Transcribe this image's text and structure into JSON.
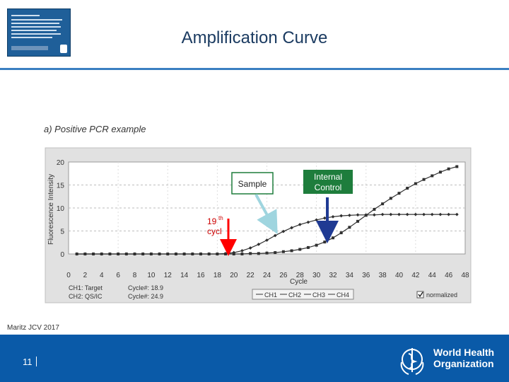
{
  "slide": {
    "title": "Amplification Curve",
    "subtitle": "a) Positive PCR example",
    "citation": "Maritz JCV 2017",
    "page_number": "11",
    "logo_text_line1": "World Health",
    "logo_text_line2": "Organization"
  },
  "chart_data": {
    "type": "line",
    "xlabel": "Cycle",
    "ylabel": "Fluorescence Intensity",
    "xlim": [
      0,
      48
    ],
    "ylim": [
      0,
      20
    ],
    "x_ticks": [
      0,
      2,
      4,
      6,
      8,
      10,
      12,
      14,
      16,
      18,
      20,
      22,
      24,
      26,
      28,
      30,
      32,
      34,
      36,
      38,
      40,
      42,
      44,
      46,
      48
    ],
    "y_ticks": [
      0,
      5,
      10,
      15,
      20
    ],
    "grid": true,
    "series": [
      {
        "name": "CH1",
        "x": [
          1,
          2,
          3,
          4,
          5,
          6,
          7,
          8,
          9,
          10,
          11,
          12,
          13,
          14,
          15,
          16,
          17,
          18,
          19,
          20,
          21,
          22,
          23,
          24,
          25,
          26,
          27,
          28,
          29,
          30,
          31,
          32,
          33,
          34,
          35,
          36,
          37,
          38,
          39,
          40,
          41,
          42,
          43,
          44,
          45,
          46,
          47
        ],
        "values": [
          0,
          0,
          0,
          0,
          0,
          0,
          0,
          0,
          0,
          0,
          0,
          0,
          0,
          0,
          0,
          0,
          0,
          0,
          0.1,
          0.3,
          0.7,
          1.3,
          2.1,
          3.0,
          4.0,
          4.9,
          5.7,
          6.4,
          6.9,
          7.4,
          7.8,
          8.1,
          8.3,
          8.4,
          8.5,
          8.5,
          8.5,
          8.6,
          8.6,
          8.6,
          8.6,
          8.6,
          8.6,
          8.6,
          8.6,
          8.6,
          8.6
        ]
      },
      {
        "name": "CH2",
        "x": [
          1,
          2,
          3,
          4,
          5,
          6,
          7,
          8,
          9,
          10,
          11,
          12,
          13,
          14,
          15,
          16,
          17,
          18,
          19,
          20,
          21,
          22,
          23,
          24,
          25,
          26,
          27,
          28,
          29,
          30,
          31,
          32,
          33,
          34,
          35,
          36,
          37,
          38,
          39,
          40,
          41,
          42,
          43,
          44,
          45,
          46,
          47
        ],
        "values": [
          0,
          0,
          0,
          0,
          0,
          0,
          0,
          0,
          0,
          0,
          0,
          0,
          0,
          0,
          0,
          0,
          0,
          0,
          0,
          0,
          0,
          0.1,
          0.1,
          0.2,
          0.3,
          0.5,
          0.7,
          1.0,
          1.4,
          1.9,
          2.6,
          3.5,
          4.6,
          5.8,
          7.1,
          8.4,
          9.7,
          10.9,
          12.1,
          13.2,
          14.3,
          15.3,
          16.2,
          17.0,
          17.8,
          18.5,
          19.0
        ]
      }
    ],
    "legend": {
      "position": "bottom-center",
      "entries": [
        "CH1",
        "CH2",
        "CH3",
        "CH4"
      ]
    },
    "info": {
      "line1_label": "CH1: Target",
      "line1_value": "Cycle#: 18.9",
      "line2_label": "CH2: QS/IC",
      "line2_value": "Cycle#: 24.9",
      "normalized_label": "normalized"
    },
    "annotations": {
      "sample": "Sample",
      "internal_control_1": "Internal",
      "internal_control_2": "Control",
      "cycle_label_main": "19",
      "cycle_label_sup": "th",
      "cycle_label_line2": "cycl"
    }
  },
  "colors": {
    "title": "#1b3b61",
    "footer": "#0a5aa8",
    "rule": "#3a7fc1",
    "series": "#303030",
    "annot_box": "#1e7d3c",
    "sample_arrow": "#9fd5df",
    "ic_arrow": "#1f3a93",
    "cycle_arrow": "#ff0000",
    "cycle_text": "#cc0000"
  }
}
